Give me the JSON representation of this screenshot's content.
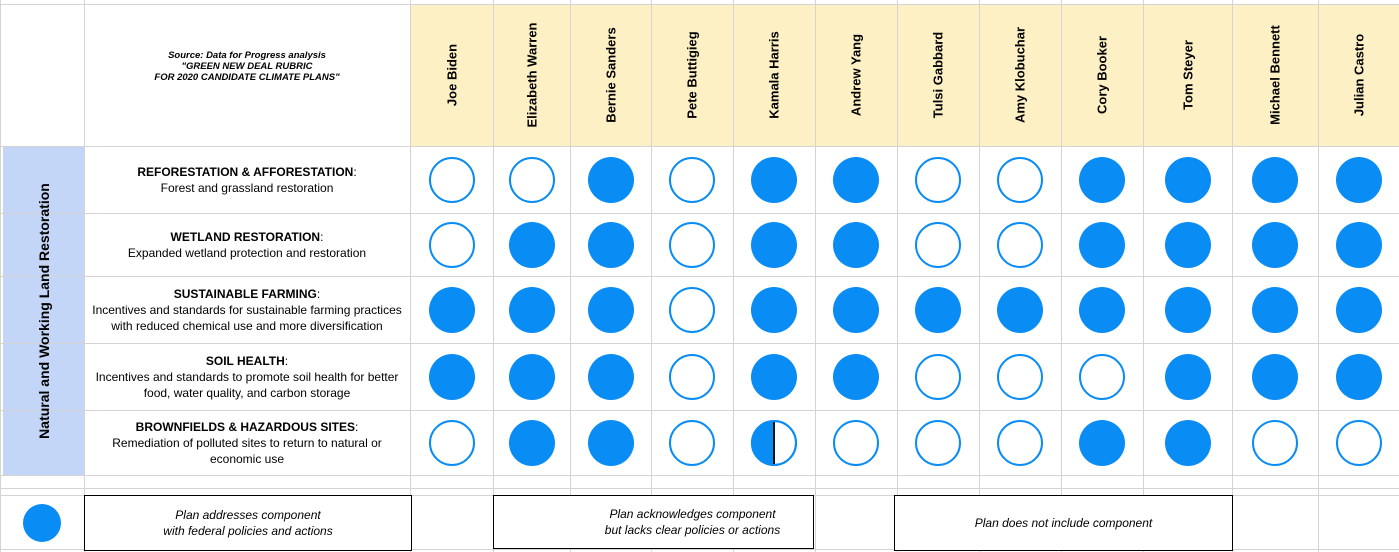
{
  "source_lines": [
    "Source: Data for Progress analysis",
    "\"GREEN NEW DEAL RUBRIC",
    "FOR 2020 CANDIDATE CLIMATE PLANS\""
  ],
  "category_label": "Natural and Working Land Restoration",
  "colors": {
    "fill": "#0a8cf5",
    "header_bg": "#fdf0c4",
    "category_bg": "#c4d6f7",
    "grid": "#d4d4d4"
  },
  "chart_data": {
    "type": "table",
    "candidates": [
      "Joe Biden",
      "Elizabeth Warren",
      "Bernie Sanders",
      "Pete Buttigieg",
      "Kamala Harris",
      "Andrew Yang",
      "Tulsi Gabbard",
      "Amy Klobuchar",
      "Cory Booker",
      "Tom Steyer",
      "Michael Bennett",
      "Julian Castro"
    ],
    "rows": [
      {
        "title": "REFORESTATION & AFFORESTATION",
        "desc": "Forest and grassland restoration",
        "scores": [
          0,
          0,
          1,
          0,
          1,
          1,
          0,
          0,
          1,
          1,
          1,
          1
        ]
      },
      {
        "title": "WETLAND RESTORATION",
        "desc": "Expanded wetland protection and restoration",
        "scores": [
          0,
          1,
          1,
          0,
          1,
          1,
          0,
          0,
          1,
          1,
          1,
          1
        ]
      },
      {
        "title": "SUSTAINABLE FARMING",
        "desc": "Incentives and standards for sustainable farming practices with reduced chemical use and more diversification",
        "scores": [
          1,
          1,
          1,
          0,
          1,
          1,
          1,
          1,
          1,
          1,
          1,
          1
        ]
      },
      {
        "title": "SOIL HEALTH",
        "desc": "Incentives and standards to promote soil health for better food, water quality, and carbon storage",
        "scores": [
          1,
          1,
          1,
          0,
          1,
          1,
          0,
          0,
          0,
          1,
          1,
          1
        ]
      },
      {
        "title": "BROWNFIELDS & HAZARDOUS SITES",
        "desc": "Remediation of polluted sites to return to natural or economic use",
        "scores": [
          0,
          1,
          1,
          0,
          0.5,
          0,
          0,
          0,
          1,
          1,
          0,
          0
        ]
      }
    ],
    "score_legend": [
      {
        "value": 1,
        "lines": [
          "Plan addresses component",
          "with federal policies and actions"
        ]
      },
      {
        "value": 0.5,
        "lines": [
          "Plan acknowledges component",
          "but lacks clear policies or actions"
        ]
      },
      {
        "value": 0,
        "lines": [
          "Plan does not include component"
        ]
      }
    ]
  }
}
